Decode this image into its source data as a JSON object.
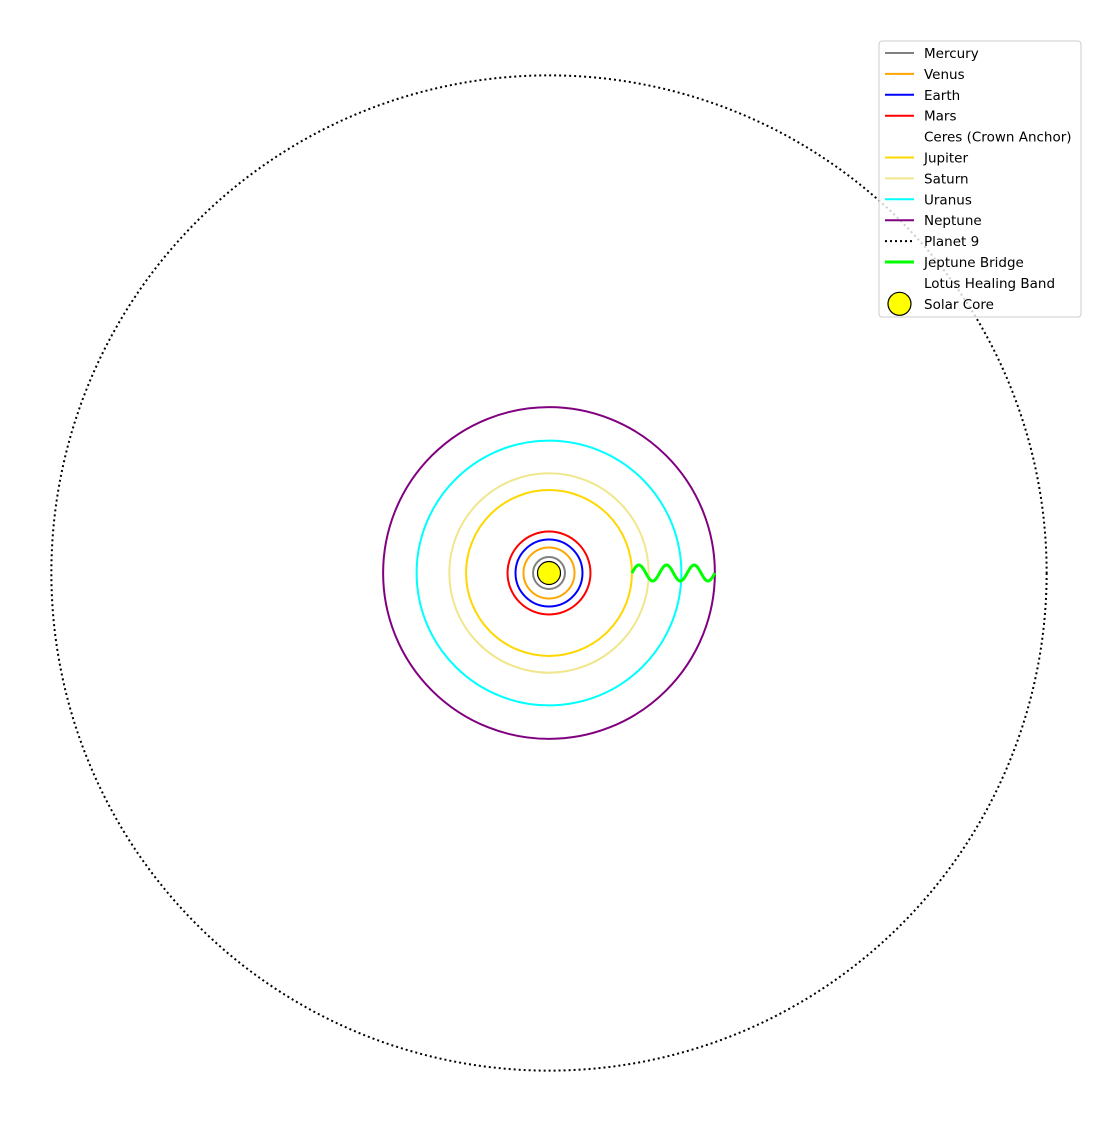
{
  "diagram": {
    "orbits": [
      {
        "id": "mercury",
        "name": "Mercury",
        "color": "#808080",
        "relative_radius": 1.0,
        "dash": "solid"
      },
      {
        "id": "venus",
        "name": "Venus",
        "color": "#ffa500",
        "relative_radius": 1.6,
        "dash": "solid"
      },
      {
        "id": "earth",
        "name": "Earth",
        "color": "#0000ff",
        "relative_radius": 2.1,
        "dash": "solid"
      },
      {
        "id": "mars",
        "name": "Mars",
        "color": "#ff0000",
        "relative_radius": 2.6,
        "dash": "solid"
      },
      {
        "id": "jupiter",
        "name": "Jupiter",
        "color": "#ffd700",
        "relative_radius": 5.2,
        "dash": "solid"
      },
      {
        "id": "saturn",
        "name": "Saturn",
        "color": "#f0e68c",
        "relative_radius": 6.25,
        "dash": "solid"
      },
      {
        "id": "uranus",
        "name": "Uranus",
        "color": "#00ffff",
        "relative_radius": 8.3,
        "dash": "solid"
      },
      {
        "id": "neptune",
        "name": "Neptune",
        "color": "#800080",
        "relative_radius": 10.4,
        "dash": "solid"
      },
      {
        "id": "planet-9",
        "name": "Planet 9",
        "color": "#000000",
        "relative_radius": 31.2,
        "dash": "dotted"
      }
    ],
    "bridge": {
      "name": "Jeptune Bridge",
      "color": "#00ff00",
      "from": "jupiter",
      "to": "neptune",
      "waves": 3
    },
    "core": {
      "name": "Solar Core",
      "fill": "#ffff00",
      "stroke": "#000000"
    }
  },
  "legend": {
    "placement": "top-right",
    "entries": [
      {
        "label": "Mercury",
        "kind": "line",
        "color": "#808080",
        "dash": "solid"
      },
      {
        "label": "Venus",
        "kind": "line",
        "color": "#ffa500",
        "dash": "solid"
      },
      {
        "label": "Earth",
        "kind": "line",
        "color": "#0000ff",
        "dash": "solid"
      },
      {
        "label": "Mars",
        "kind": "line",
        "color": "#ff0000",
        "dash": "solid"
      },
      {
        "label": "Ceres (Crown Anchor)",
        "kind": "none",
        "color": "#ffffff",
        "dash": "solid"
      },
      {
        "label": "Jupiter",
        "kind": "line",
        "color": "#ffd700",
        "dash": "solid"
      },
      {
        "label": "Saturn",
        "kind": "line",
        "color": "#f0e68c",
        "dash": "solid"
      },
      {
        "label": "Uranus",
        "kind": "line",
        "color": "#00ffff",
        "dash": "solid"
      },
      {
        "label": "Neptune",
        "kind": "line",
        "color": "#800080",
        "dash": "solid"
      },
      {
        "label": "Planet 9",
        "kind": "line",
        "color": "#000000",
        "dash": "dotted"
      },
      {
        "label": "Jeptune Bridge",
        "kind": "thick-line",
        "color": "#00ff00",
        "dash": "solid"
      },
      {
        "label": "Lotus Healing Band",
        "kind": "none",
        "color": "#ffffff",
        "dash": "solid"
      },
      {
        "label": "Solar Core",
        "kind": "marker",
        "color": "#ffff00",
        "dash": "solid"
      }
    ]
  }
}
